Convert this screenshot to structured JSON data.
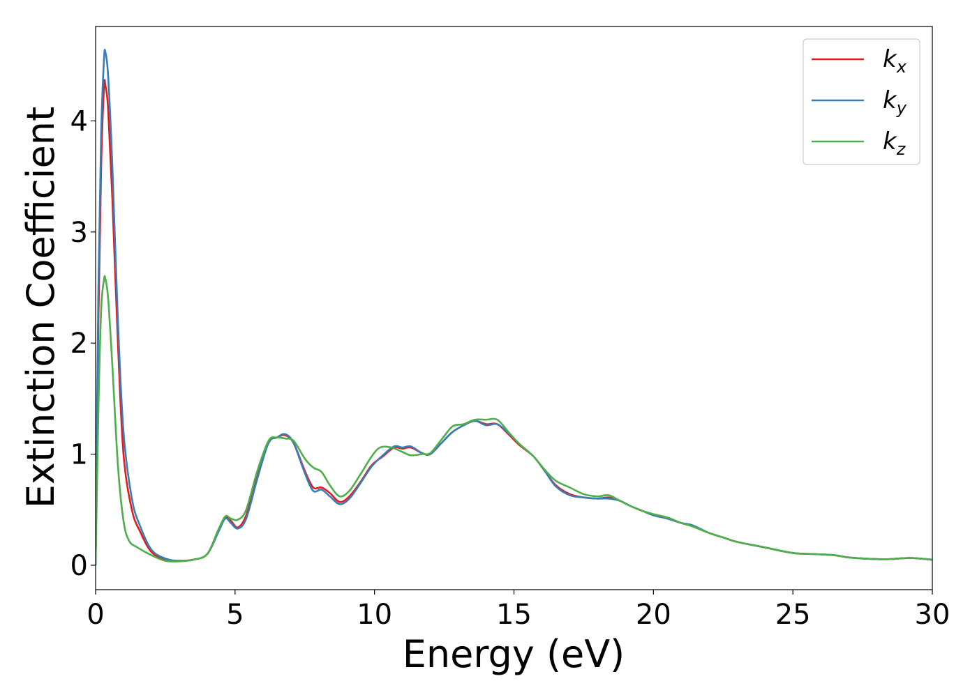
{
  "chart_data": {
    "type": "line",
    "xlabel": "Energy (eV)",
    "ylabel": "Extinction Coefficient",
    "xlim": [
      0,
      30
    ],
    "ylim": [
      -0.22,
      4.85
    ],
    "xticks": [
      "0",
      "5",
      "10",
      "15",
      "20",
      "25",
      "30"
    ],
    "yticks": [
      "0",
      "1",
      "2",
      "3",
      "4"
    ],
    "grid": false,
    "legend_position": "top-right",
    "series": [
      {
        "name": "k_x",
        "legend_base": "k",
        "legend_sub": "x",
        "color": "#e41a1c",
        "points": [
          [
            0,
            0
          ],
          [
            0.1,
            2.2
          ],
          [
            0.2,
            3.6
          ],
          [
            0.3,
            4.3
          ],
          [
            0.35,
            4.32
          ],
          [
            0.45,
            4.1
          ],
          [
            0.6,
            3.3
          ],
          [
            0.8,
            2.0
          ],
          [
            1.0,
            1.0
          ],
          [
            1.3,
            0.5
          ],
          [
            1.6,
            0.3
          ],
          [
            2.0,
            0.12
          ],
          [
            2.5,
            0.05
          ],
          [
            3.0,
            0.04
          ],
          [
            3.5,
            0.05
          ],
          [
            4.0,
            0.1
          ],
          [
            4.4,
            0.3
          ],
          [
            4.65,
            0.43
          ],
          [
            4.85,
            0.4
          ],
          [
            5.1,
            0.34
          ],
          [
            5.4,
            0.45
          ],
          [
            5.8,
            0.8
          ],
          [
            6.2,
            1.1
          ],
          [
            6.5,
            1.15
          ],
          [
            6.8,
            1.17
          ],
          [
            7.1,
            1.1
          ],
          [
            7.5,
            0.85
          ],
          [
            7.8,
            0.7
          ],
          [
            8.1,
            0.7
          ],
          [
            8.4,
            0.65
          ],
          [
            8.75,
            0.57
          ],
          [
            9.1,
            0.62
          ],
          [
            9.5,
            0.75
          ],
          [
            9.9,
            0.9
          ],
          [
            10.3,
            0.98
          ],
          [
            10.7,
            1.06
          ],
          [
            11.0,
            1.05
          ],
          [
            11.3,
            1.06
          ],
          [
            11.7,
            1.01
          ],
          [
            12.0,
            1.0
          ],
          [
            12.4,
            1.1
          ],
          [
            12.8,
            1.2
          ],
          [
            13.2,
            1.26
          ],
          [
            13.6,
            1.3
          ],
          [
            14.0,
            1.27
          ],
          [
            14.4,
            1.27
          ],
          [
            14.8,
            1.18
          ],
          [
            15.2,
            1.08
          ],
          [
            15.7,
            0.98
          ],
          [
            16.1,
            0.85
          ],
          [
            16.5,
            0.72
          ],
          [
            17.0,
            0.64
          ],
          [
            17.5,
            0.61
          ],
          [
            18.0,
            0.6
          ],
          [
            18.4,
            0.61
          ],
          [
            18.8,
            0.58
          ],
          [
            19.2,
            0.53
          ],
          [
            19.6,
            0.49
          ],
          [
            20.0,
            0.45
          ],
          [
            20.5,
            0.42
          ],
          [
            21.0,
            0.38
          ],
          [
            21.4,
            0.35
          ],
          [
            22.0,
            0.29
          ],
          [
            22.5,
            0.25
          ],
          [
            23.0,
            0.21
          ],
          [
            24.0,
            0.16
          ],
          [
            25.0,
            0.11
          ],
          [
            25.8,
            0.1
          ],
          [
            26.5,
            0.09
          ],
          [
            27.0,
            0.07
          ],
          [
            28.0,
            0.055
          ],
          [
            28.5,
            0.055
          ],
          [
            29.2,
            0.065
          ],
          [
            30.0,
            0.05
          ]
        ]
      },
      {
        "name": "k_y",
        "legend_base": "k",
        "legend_sub": "y",
        "color": "#377eb8",
        "points": [
          [
            0,
            0
          ],
          [
            0.1,
            2.5
          ],
          [
            0.2,
            3.9
          ],
          [
            0.3,
            4.55
          ],
          [
            0.35,
            4.62
          ],
          [
            0.45,
            4.4
          ],
          [
            0.6,
            3.6
          ],
          [
            0.8,
            2.2
          ],
          [
            1.0,
            1.2
          ],
          [
            1.3,
            0.6
          ],
          [
            1.6,
            0.35
          ],
          [
            2.0,
            0.14
          ],
          [
            2.5,
            0.06
          ],
          [
            3.0,
            0.04
          ],
          [
            3.5,
            0.05
          ],
          [
            4.0,
            0.1
          ],
          [
            4.4,
            0.3
          ],
          [
            4.65,
            0.42
          ],
          [
            4.85,
            0.38
          ],
          [
            5.1,
            0.33
          ],
          [
            5.4,
            0.42
          ],
          [
            5.8,
            0.78
          ],
          [
            6.2,
            1.1
          ],
          [
            6.5,
            1.15
          ],
          [
            6.8,
            1.18
          ],
          [
            7.1,
            1.1
          ],
          [
            7.5,
            0.83
          ],
          [
            7.8,
            0.67
          ],
          [
            8.1,
            0.68
          ],
          [
            8.4,
            0.62
          ],
          [
            8.75,
            0.55
          ],
          [
            9.1,
            0.6
          ],
          [
            9.5,
            0.74
          ],
          [
            9.9,
            0.89
          ],
          [
            10.3,
            0.99
          ],
          [
            10.7,
            1.07
          ],
          [
            11.0,
            1.06
          ],
          [
            11.3,
            1.07
          ],
          [
            11.7,
            1.01
          ],
          [
            12.0,
            1.0
          ],
          [
            12.4,
            1.1
          ],
          [
            12.8,
            1.2
          ],
          [
            13.2,
            1.26
          ],
          [
            13.6,
            1.3
          ],
          [
            14.0,
            1.26
          ],
          [
            14.4,
            1.27
          ],
          [
            14.8,
            1.19
          ],
          [
            15.2,
            1.09
          ],
          [
            15.7,
            0.98
          ],
          [
            16.1,
            0.85
          ],
          [
            16.5,
            0.71
          ],
          [
            17.0,
            0.63
          ],
          [
            17.5,
            0.61
          ],
          [
            18.0,
            0.6
          ],
          [
            18.4,
            0.6
          ],
          [
            18.8,
            0.58
          ],
          [
            19.2,
            0.53
          ],
          [
            19.6,
            0.49
          ],
          [
            20.0,
            0.45
          ],
          [
            20.5,
            0.42
          ],
          [
            21.0,
            0.38
          ],
          [
            21.4,
            0.36
          ],
          [
            22.0,
            0.29
          ],
          [
            22.5,
            0.25
          ],
          [
            23.0,
            0.21
          ],
          [
            24.0,
            0.16
          ],
          [
            25.0,
            0.11
          ],
          [
            25.8,
            0.1
          ],
          [
            26.5,
            0.09
          ],
          [
            27.0,
            0.07
          ],
          [
            28.0,
            0.055
          ],
          [
            28.5,
            0.055
          ],
          [
            29.2,
            0.065
          ],
          [
            30.0,
            0.05
          ]
        ]
      },
      {
        "name": "k_z",
        "legend_base": "k",
        "legend_sub": "z",
        "color": "#4daf4a",
        "points": [
          [
            0,
            0
          ],
          [
            0.1,
            1.4
          ],
          [
            0.2,
            2.3
          ],
          [
            0.3,
            2.57
          ],
          [
            0.35,
            2.58
          ],
          [
            0.45,
            2.4
          ],
          [
            0.6,
            1.8
          ],
          [
            0.8,
            0.9
          ],
          [
            1.0,
            0.4
          ],
          [
            1.2,
            0.22
          ],
          [
            1.5,
            0.16
          ],
          [
            2.0,
            0.09
          ],
          [
            2.5,
            0.04
          ],
          [
            3.0,
            0.035
          ],
          [
            3.5,
            0.05
          ],
          [
            4.0,
            0.1
          ],
          [
            4.4,
            0.32
          ],
          [
            4.65,
            0.44
          ],
          [
            4.85,
            0.42
          ],
          [
            5.1,
            0.41
          ],
          [
            5.4,
            0.5
          ],
          [
            5.8,
            0.85
          ],
          [
            6.2,
            1.12
          ],
          [
            6.5,
            1.15
          ],
          [
            6.8,
            1.14
          ],
          [
            7.1,
            1.12
          ],
          [
            7.5,
            0.96
          ],
          [
            7.8,
            0.88
          ],
          [
            8.1,
            0.84
          ],
          [
            8.4,
            0.72
          ],
          [
            8.75,
            0.62
          ],
          [
            9.1,
            0.67
          ],
          [
            9.5,
            0.82
          ],
          [
            9.9,
            0.98
          ],
          [
            10.2,
            1.06
          ],
          [
            10.6,
            1.06
          ],
          [
            11.0,
            1.02
          ],
          [
            11.3,
            0.99
          ],
          [
            11.7,
            1.0
          ],
          [
            12.0,
            1.01
          ],
          [
            12.4,
            1.13
          ],
          [
            12.8,
            1.25
          ],
          [
            13.2,
            1.27
          ],
          [
            13.6,
            1.31
          ],
          [
            14.0,
            1.31
          ],
          [
            14.4,
            1.31
          ],
          [
            14.8,
            1.2
          ],
          [
            15.2,
            1.09
          ],
          [
            15.7,
            0.98
          ],
          [
            16.1,
            0.86
          ],
          [
            16.5,
            0.76
          ],
          [
            17.0,
            0.7
          ],
          [
            17.5,
            0.64
          ],
          [
            18.0,
            0.62
          ],
          [
            18.4,
            0.63
          ],
          [
            18.8,
            0.58
          ],
          [
            19.2,
            0.53
          ],
          [
            19.6,
            0.49
          ],
          [
            20.0,
            0.46
          ],
          [
            20.5,
            0.43
          ],
          [
            21.0,
            0.38
          ],
          [
            21.4,
            0.35
          ],
          [
            22.0,
            0.29
          ],
          [
            22.5,
            0.25
          ],
          [
            23.0,
            0.21
          ],
          [
            24.0,
            0.16
          ],
          [
            25.0,
            0.11
          ],
          [
            25.8,
            0.1
          ],
          [
            26.5,
            0.09
          ],
          [
            27.0,
            0.07
          ],
          [
            28.0,
            0.055
          ],
          [
            28.5,
            0.055
          ],
          [
            29.2,
            0.065
          ],
          [
            30.0,
            0.05
          ]
        ]
      }
    ]
  }
}
